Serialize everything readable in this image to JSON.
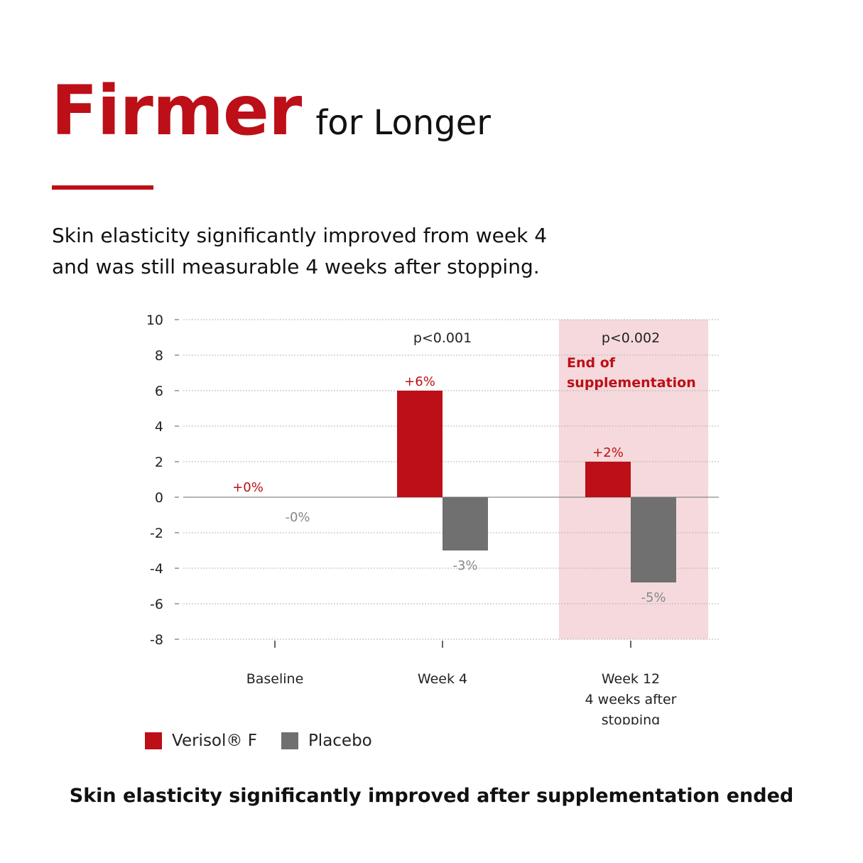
{
  "header": {
    "title_main": "Firmer",
    "title_sub": "for Longer",
    "intro_lines": [
      "Skin elasticity significantly improved from week 4",
      "and was still measurable 4 weeks after stopping."
    ]
  },
  "colors": {
    "brand_red": "#bc0f17",
    "placebo_gray": "#707070",
    "highlight_band": "#f5d9dc",
    "text_dark": "#111111",
    "placebo_label": "#888888",
    "grid": "#b5b5b5"
  },
  "chart_data": {
    "type": "bar",
    "categories": [
      [
        "Baseline"
      ],
      [
        "Week 4"
      ],
      [
        "Week 12",
        "4 weeks after",
        "stopping"
      ]
    ],
    "series": [
      {
        "name": "Verisol® F",
        "values": [
          0,
          6,
          2
        ],
        "labels": [
          "+0%",
          "+6%",
          "+2%"
        ]
      },
      {
        "name": "Placebo",
        "values": [
          0,
          -3,
          -4.8
        ],
        "labels": [
          "-0%",
          "-3%",
          "-5%"
        ]
      }
    ],
    "ylim": [
      -8,
      10
    ],
    "yticks": [
      10,
      8,
      6,
      4,
      2,
      0,
      -2,
      -4,
      -6,
      -8
    ],
    "grid": true,
    "significance": [
      "",
      "p<0.001",
      "p<0.002"
    ],
    "highlight": {
      "category_index": 2,
      "label_lines": [
        "End of",
        "supplementation"
      ]
    },
    "legend_position": "bottom-left"
  },
  "footer": {
    "caption": "Skin elasticity significantly improved after supplementation ended"
  }
}
